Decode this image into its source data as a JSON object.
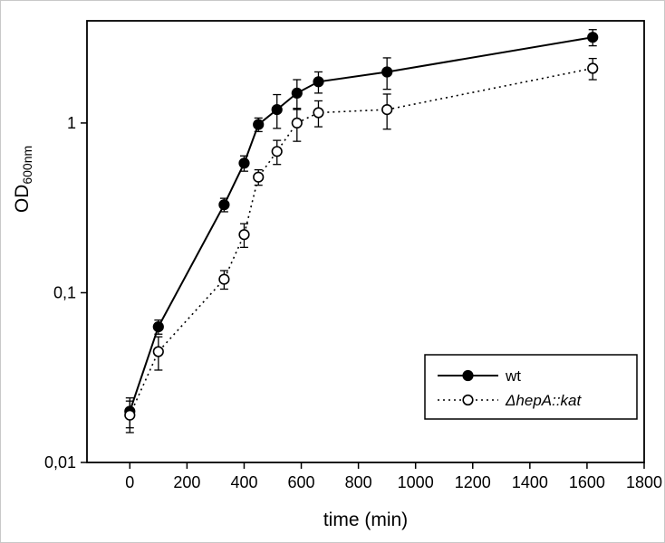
{
  "chart_data": {
    "type": "line",
    "title": "",
    "xlabel": "time (min)",
    "ylabel": "OD",
    "ylabel_sub": "600nm",
    "yscale": "log",
    "xlim": [
      -150,
      1800
    ],
    "ylim": [
      0.01,
      4
    ],
    "xticks": [
      0,
      200,
      400,
      600,
      800,
      1000,
      1200,
      1400,
      1600,
      1800
    ],
    "yticks": [
      {
        "value": 0.01,
        "label": "0,01"
      },
      {
        "value": 0.1,
        "label": "0,1"
      },
      {
        "value": 1,
        "label": "1"
      }
    ],
    "grid": false,
    "legend_position": "lower-right",
    "colors": {
      "foreground": "#000000",
      "background": "#ffffff"
    },
    "series": [
      {
        "name": "wt",
        "italic": false,
        "marker": "filled-circle",
        "line": "solid",
        "x": [
          0,
          100,
          330,
          400,
          450,
          515,
          585,
          660,
          900,
          1620
        ],
        "y": [
          0.02,
          0.063,
          0.33,
          0.58,
          0.98,
          1.2,
          1.5,
          1.75,
          2.0,
          3.2
        ],
        "yerr": [
          0.004,
          0.006,
          0.03,
          0.06,
          0.09,
          0.27,
          0.3,
          0.25,
          0.42,
          0.35
        ]
      },
      {
        "name": "ΔhepA::kat",
        "italic": true,
        "marker": "open-circle",
        "line": "dotted",
        "x": [
          0,
          100,
          330,
          400,
          450,
          515,
          585,
          660,
          900,
          1620
        ],
        "y": [
          0.019,
          0.045,
          0.12,
          0.22,
          0.48,
          0.68,
          1.0,
          1.15,
          1.2,
          2.1
        ],
        "yerr": [
          0.004,
          0.01,
          0.015,
          0.035,
          0.05,
          0.11,
          0.22,
          0.2,
          0.28,
          0.3
        ]
      }
    ]
  }
}
